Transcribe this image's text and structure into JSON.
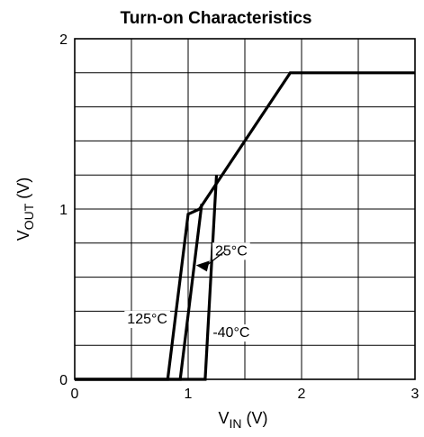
{
  "chart_data": {
    "type": "line",
    "title": "Turn-on Characteristics",
    "xlabel": {
      "main": "V",
      "sub": "IN",
      "unit": " (V)"
    },
    "ylabel": {
      "main": "V",
      "sub": "OUT",
      "unit": " (V)"
    },
    "xlim": [
      0,
      3
    ],
    "ylim": [
      0,
      2
    ],
    "xticks": [
      0,
      1,
      2,
      3
    ],
    "yticks": [
      0,
      1,
      2
    ],
    "xtick_labels": [
      "0",
      "1",
      "2",
      "3"
    ],
    "ytick_labels": [
      "0",
      "1",
      "2"
    ],
    "grid": true,
    "common_curve": {
      "x": [
        1.1,
        1.9,
        3.0
      ],
      "y": [
        1.0,
        1.8,
        1.8
      ]
    },
    "series": [
      {
        "name": "125°C",
        "x": [
          0,
          0.82,
          1.0,
          1.1
        ],
        "y": [
          0,
          0,
          0.97,
          1.0
        ]
      },
      {
        "name": "25°C",
        "x": [
          0,
          0.93,
          1.12
        ],
        "y": [
          0,
          0,
          1.03
        ]
      },
      {
        "name": "-40°C",
        "x": [
          0,
          1.15,
          1.25
        ],
        "y": [
          0,
          0,
          1.2
        ]
      }
    ],
    "annotations": [
      {
        "text": "125°C",
        "x": 0.64,
        "y": 0.36
      },
      {
        "text": "25°C",
        "x": 1.38,
        "y": 0.76
      },
      {
        "text": "-40°C",
        "x": 1.38,
        "y": 0.28
      }
    ]
  }
}
